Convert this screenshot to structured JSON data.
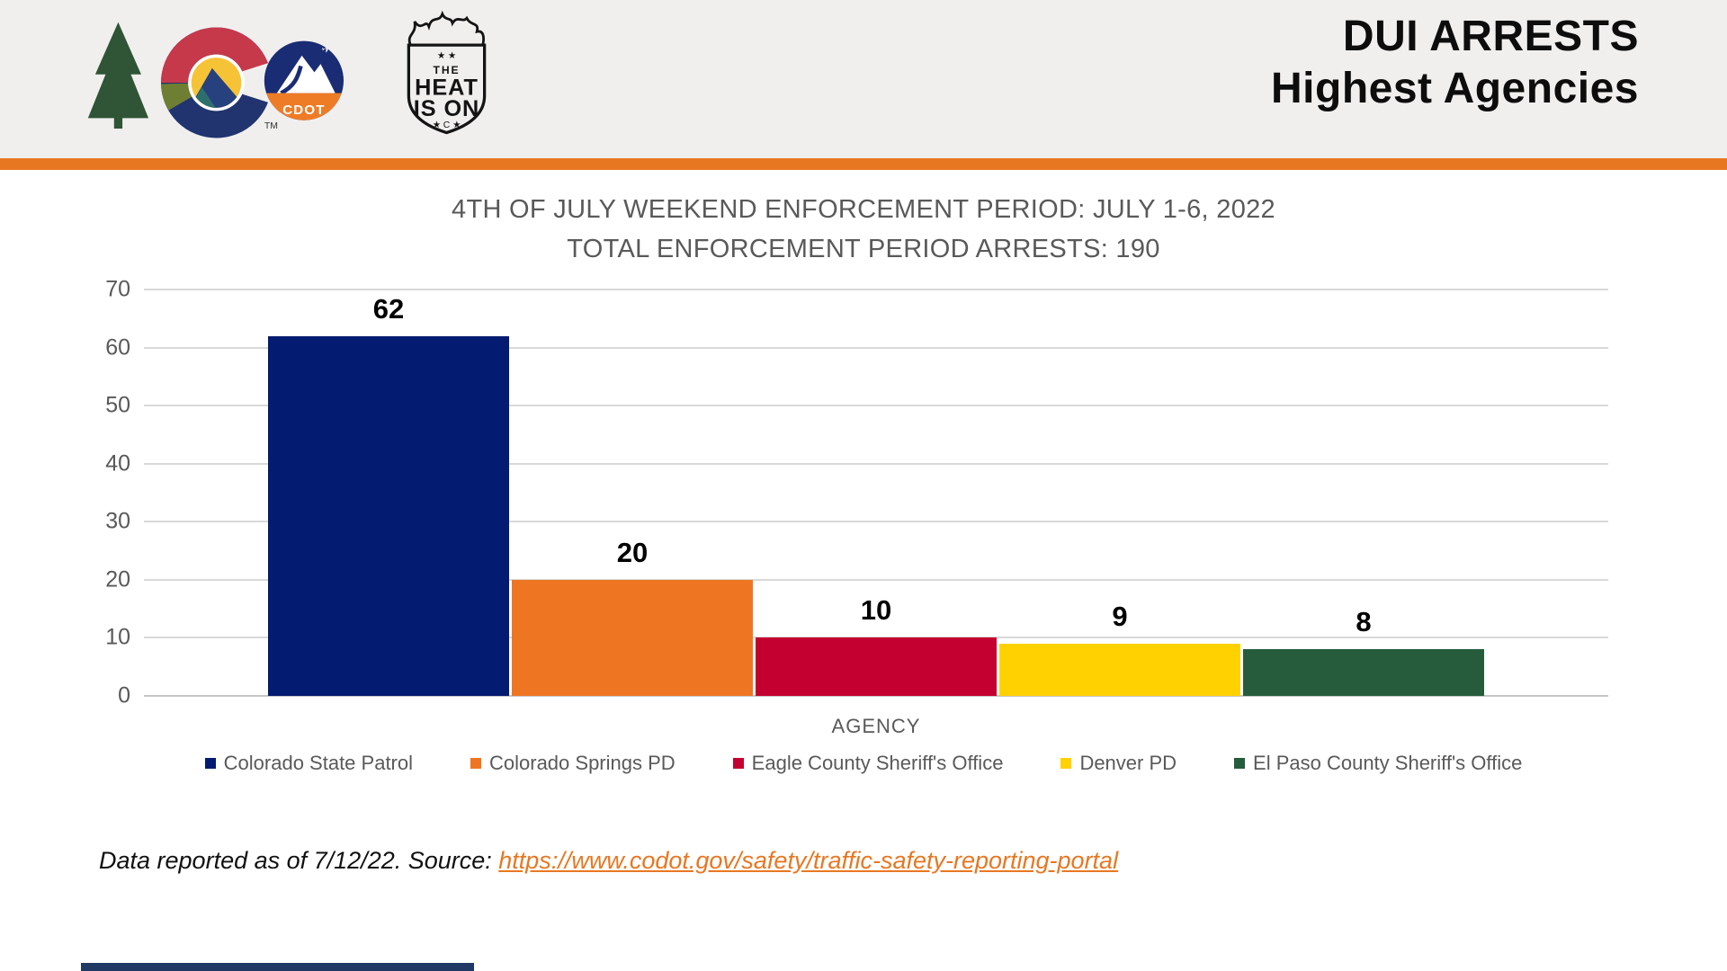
{
  "theme": {
    "header_bg": "#f0efee",
    "accent_orange": "#e87722",
    "text_gray": "#595959",
    "bottom_navy": "#1f3864"
  },
  "header": {
    "title_line1": "DUI ARRESTS",
    "title_line2": "Highest Agencies",
    "colorado_logo": {
      "tm": "TM",
      "cdot_label": "CDOT"
    },
    "heat_badge": {
      "top_stars": "★ ★",
      "line1": "THE",
      "line2": "HEAT",
      "line3": "IS ON",
      "bottom_row": "★ C ★"
    }
  },
  "chart_data": {
    "type": "bar",
    "title_line1": "4TH OF JULY WEEKEND ENFORCEMENT PERIOD: JULY 1-6, 2022",
    "title_line2": "TOTAL ENFORCEMENT PERIOD ARRESTS: 190",
    "xlabel": "AGENCY",
    "ylabel": "",
    "ylim": [
      0,
      70
    ],
    "yticks": [
      70,
      60,
      50,
      40,
      30,
      20,
      10,
      0
    ],
    "grid": true,
    "legend_position": "bottom",
    "series": [
      {
        "name": "Colorado State Patrol",
        "value": 62,
        "color": "#031b70"
      },
      {
        "name": "Colorado Springs PD",
        "value": 20,
        "color": "#ee7623"
      },
      {
        "name": "Eagle County Sheriff's Office",
        "value": 10,
        "color": "#c3002f"
      },
      {
        "name": "Denver PD",
        "value": 9,
        "color": "#ffd100"
      },
      {
        "name": "El Paso County Sheriff's Office",
        "value": 8,
        "color": "#265c3c"
      }
    ]
  },
  "footer": {
    "text": "Data reported as of 7/12/22. Source: ",
    "link": "https://www.codot.gov/safety/traffic-safety-reporting-portal"
  }
}
